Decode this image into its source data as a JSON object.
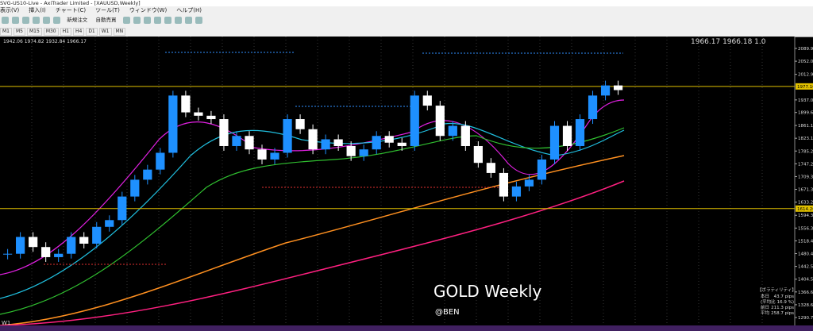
{
  "window": {
    "title": "SVG-US10-Live - AxiTrader Limited - [XAUUSD,Weekly]"
  },
  "menu": [
    "表示(V)",
    "挿入(I)",
    "チャート(C)",
    "ツール(T)",
    "ウィンドウ(W)",
    "ヘルプ(H)"
  ],
  "toolbar": {
    "new_order": "新規注文",
    "auto_trade": "自動売買"
  },
  "timeframes": [
    "M1",
    "M5",
    "M15",
    "M30",
    "H1",
    "H4",
    "D1",
    "W1",
    "MN"
  ],
  "chart": {
    "ohlc": "1942.06 1974.82 1932.84 1966.17",
    "bid_ask": "1966.17  1966.18  1.0",
    "overlay_title": "GOLD Weekly",
    "overlay_author": "@BEN",
    "timeframe": "W1",
    "price_axis": [
      {
        "value": 2089.95,
        "label": "2089.95"
      },
      {
        "value": 2052,
        "label": "2052.00"
      },
      {
        "value": 2012.9,
        "label": "2012.90"
      },
      {
        "value": 1937,
        "label": "1937.00"
      },
      {
        "value": 1899.65,
        "label": "1899.65"
      },
      {
        "value": 1861.1,
        "label": "1861.10"
      },
      {
        "value": 1823.15,
        "label": "1823.15"
      },
      {
        "value": 1785.2,
        "label": "1785.20"
      },
      {
        "value": 1747.25,
        "label": "1747.25"
      },
      {
        "value": 1709.3,
        "label": "1709.30"
      },
      {
        "value": 1671.35,
        "label": "1671.35"
      },
      {
        "value": 1633.25,
        "label": "1633.25"
      },
      {
        "value": 1594.3,
        "label": "1594.30"
      },
      {
        "value": 1556.35,
        "label": "1556.35"
      },
      {
        "value": 1518.4,
        "label": "1518.40"
      },
      {
        "value": 1480.45,
        "label": "1480.45"
      },
      {
        "value": 1442.5,
        "label": "1442.50"
      },
      {
        "value": 1404.55,
        "label": "1404.55"
      },
      {
        "value": 1366.6,
        "label": "1366.60"
      },
      {
        "value": 1328.65,
        "label": "1328.65"
      },
      {
        "value": 1290.7,
        "label": "1290.70"
      }
    ],
    "levels": [
      {
        "value": 1977.1,
        "label": "1977.10"
      },
      {
        "value": 1614.2,
        "label": "1614.20"
      }
    ],
    "closes": [
      1480,
      1530,
      1500,
      1470,
      1480,
      1530,
      1510,
      1560,
      1580,
      1650,
      1700,
      1730,
      1780,
      1950,
      1900,
      1890,
      1880,
      1800,
      1830,
      1790,
      1760,
      1780,
      1880,
      1850,
      1790,
      1820,
      1800,
      1770,
      1790,
      1830,
      1810,
      1800,
      1950,
      1920,
      1830,
      1860,
      1800,
      1750,
      1720,
      1650,
      1680,
      1700,
      1760,
      1860,
      1800,
      1880,
      1950,
      1980,
      1966.17
    ]
  },
  "volatility": {
    "title": "【ボラティリティ】",
    "rows": [
      [
        "本日",
        "43.7 pips"
      ],
      [
        "(平均比",
        "16.9 %)"
      ],
      [
        "前日",
        "211.3 pips"
      ],
      [
        "平均",
        "258.7 pips"
      ]
    ]
  }
}
